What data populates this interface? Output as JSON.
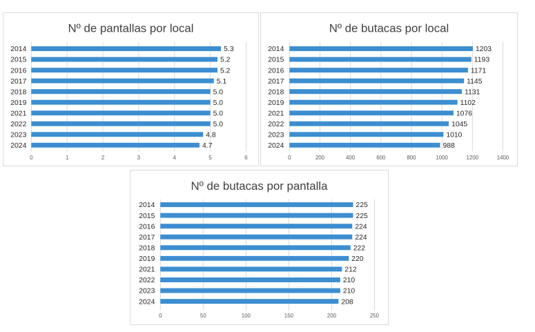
{
  "chart_data": [
    {
      "type": "bar",
      "orientation": "horizontal",
      "title": "Nº de pantallas por local",
      "categories": [
        "2014",
        "2015",
        "2016",
        "2017",
        "2018",
        "2019",
        "2021",
        "2022",
        "2023",
        "2024"
      ],
      "values": [
        5.3,
        5.2,
        5.2,
        5.1,
        5.0,
        5.0,
        5.0,
        5.0,
        4.8,
        4.7
      ],
      "data_labels": [
        "5.3",
        "5.2",
        "5.2",
        "5.1",
        "5.0",
        "5.0",
        "5.0",
        "5.0",
        "4.8",
        "4.7"
      ],
      "xlim": [
        0,
        6
      ],
      "ticks": [
        0,
        1,
        2,
        3,
        4,
        5,
        6
      ],
      "tick_labels": [
        "0",
        "1",
        "2",
        "3",
        "4",
        "5",
        "6"
      ],
      "grid": true,
      "bar_color": "#3c8ed0"
    },
    {
      "type": "bar",
      "orientation": "horizontal",
      "title": "Nº de butacas por local",
      "categories": [
        "2014",
        "2015",
        "2016",
        "2017",
        "2018",
        "2019",
        "2021",
        "2022",
        "2023",
        "2024"
      ],
      "values": [
        1203,
        1193,
        1171,
        1145,
        1131,
        1102,
        1076,
        1045,
        1010,
        988
      ],
      "data_labels": [
        "1203",
        "1193",
        "1171",
        "1145",
        "1131",
        "1102",
        "1076",
        "1045",
        "1010",
        "988"
      ],
      "xlim": [
        0,
        1400
      ],
      "ticks": [
        0,
        200,
        400,
        600,
        800,
        1000,
        1200,
        1400
      ],
      "tick_labels": [
        "0",
        "200",
        "400",
        "600",
        "800",
        "1000",
        "1200",
        "1400"
      ],
      "grid": true,
      "bar_color": "#3c8ed0"
    },
    {
      "type": "bar",
      "orientation": "horizontal",
      "title": "Nº de butacas por pantalla",
      "categories": [
        "2014",
        "2015",
        "2016",
        "2017",
        "2018",
        "2019",
        "2021",
        "2022",
        "2023",
        "2024"
      ],
      "values": [
        225,
        225,
        224,
        224,
        222,
        220,
        212,
        210,
        210,
        208
      ],
      "data_labels": [
        "225",
        "225",
        "224",
        "224",
        "222",
        "220",
        "212",
        "210",
        "210",
        "208"
      ],
      "xlim": [
        0,
        250
      ],
      "ticks": [
        0,
        50,
        100,
        150,
        200,
        250
      ],
      "tick_labels": [
        "0",
        "50",
        "100",
        "150",
        "200",
        "250"
      ],
      "grid": true,
      "bar_color": "#3c8ed0"
    }
  ]
}
